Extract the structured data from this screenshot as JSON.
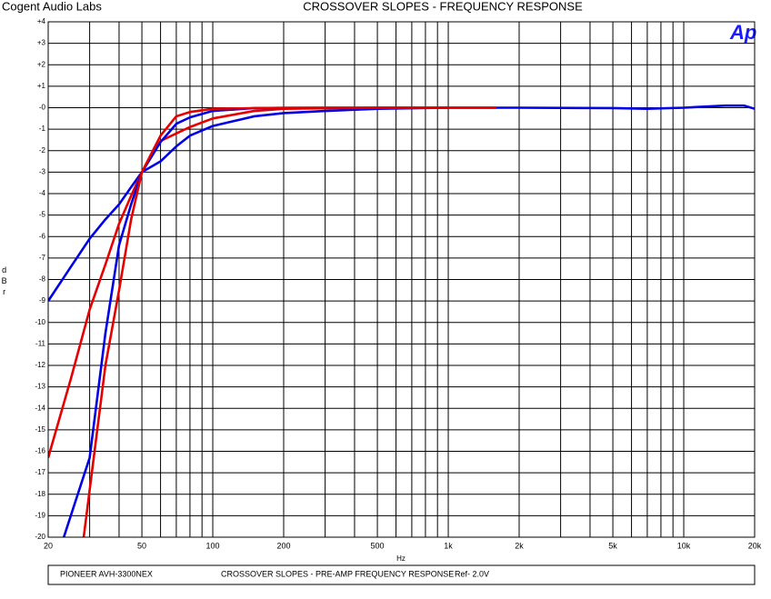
{
  "header": {
    "company": "Cogent Audio Labs",
    "logo": "Ap"
  },
  "chart_data": {
    "type": "line",
    "title": "CROSSOVER SLOPES  -  FREQUENCY RESPONSE",
    "xlabel": "Hz",
    "ylabel": "dBr",
    "xscale": "log",
    "grid": true,
    "xlim": [
      20,
      20000
    ],
    "ylim": [
      -20,
      4
    ],
    "xticks": [
      20,
      50,
      100,
      200,
      500,
      {
        "value": 1000,
        "label": "1k"
      },
      {
        "value": 2000,
        "label": "2k"
      },
      {
        "value": 5000,
        "label": "5k"
      },
      {
        "value": 10000,
        "label": "10k"
      },
      {
        "value": 20000,
        "label": "20k"
      }
    ],
    "xminorticks": [
      30,
      40,
      60,
      70,
      80,
      90,
      300,
      400,
      600,
      700,
      800,
      900,
      3000,
      4000,
      6000,
      7000,
      8000,
      9000
    ],
    "yticks": [
      {
        "value": 4,
        "label": "+4"
      },
      {
        "value": 3,
        "label": "+3"
      },
      {
        "value": 2,
        "label": "+2"
      },
      {
        "value": 1,
        "label": "+1"
      },
      {
        "value": 0,
        "label": "-0"
      },
      -1,
      -2,
      -3,
      -4,
      -5,
      -6,
      -7,
      -8,
      -9,
      -10,
      -11,
      -12,
      -13,
      -14,
      -15,
      -16,
      -17,
      -18,
      -19,
      -20
    ],
    "series": [
      {
        "color": "#0000e6",
        "x": [
          20,
          25,
          30,
          35,
          40,
          45,
          50,
          60,
          70,
          80,
          100,
          150,
          200,
          300,
          500,
          1000,
          2000,
          5000,
          7000,
          10000,
          15000,
          18000,
          20000
        ],
        "values": [
          -9,
          -7.4,
          -6.1,
          -5.2,
          -4.5,
          -3.7,
          -3,
          -2.5,
          -1.8,
          -1.3,
          -0.85,
          -0.4,
          -0.25,
          -0.15,
          -0.05,
          0,
          0,
          -0.02,
          -0.05,
          0,
          0.1,
          0.1,
          -0.05
        ]
      },
      {
        "color": "#e60000",
        "x": [
          20,
          25,
          30,
          35,
          40,
          45,
          50,
          60,
          70,
          80,
          100,
          150,
          200,
          500,
          1600
        ],
        "values": [
          -16.3,
          -12.6,
          -9.4,
          -7.3,
          -5.4,
          -4.1,
          -3,
          -1.55,
          -1.2,
          -0.9,
          -0.5,
          -0.15,
          -0.05,
          0,
          0
        ]
      },
      {
        "color": "#0000e6",
        "x": [
          23.3,
          30,
          35,
          40,
          45,
          50,
          60,
          70,
          80,
          100,
          150,
          300,
          1000
        ],
        "values": [
          -20,
          -16.3,
          -10.5,
          -6.4,
          -4.5,
          -3,
          -1.6,
          -0.75,
          -0.45,
          -0.15,
          -0.02,
          0,
          0
        ]
      },
      {
        "color": "#e60000",
        "x": [
          28.3,
          35,
          40,
          45,
          50,
          60,
          70,
          80,
          100,
          200,
          1600
        ],
        "values": [
          -20,
          -12,
          -8.5,
          -5.2,
          -3,
          -1.3,
          -0.4,
          -0.2,
          -0.05,
          0,
          0
        ]
      }
    ]
  },
  "footer": {
    "device": "PIONEER AVH-3300NEX",
    "description": "CROSSOVER SLOPES - PRE-AMP FREQUENCY RESPONSE",
    "reference": "Ref- 2.0V"
  }
}
